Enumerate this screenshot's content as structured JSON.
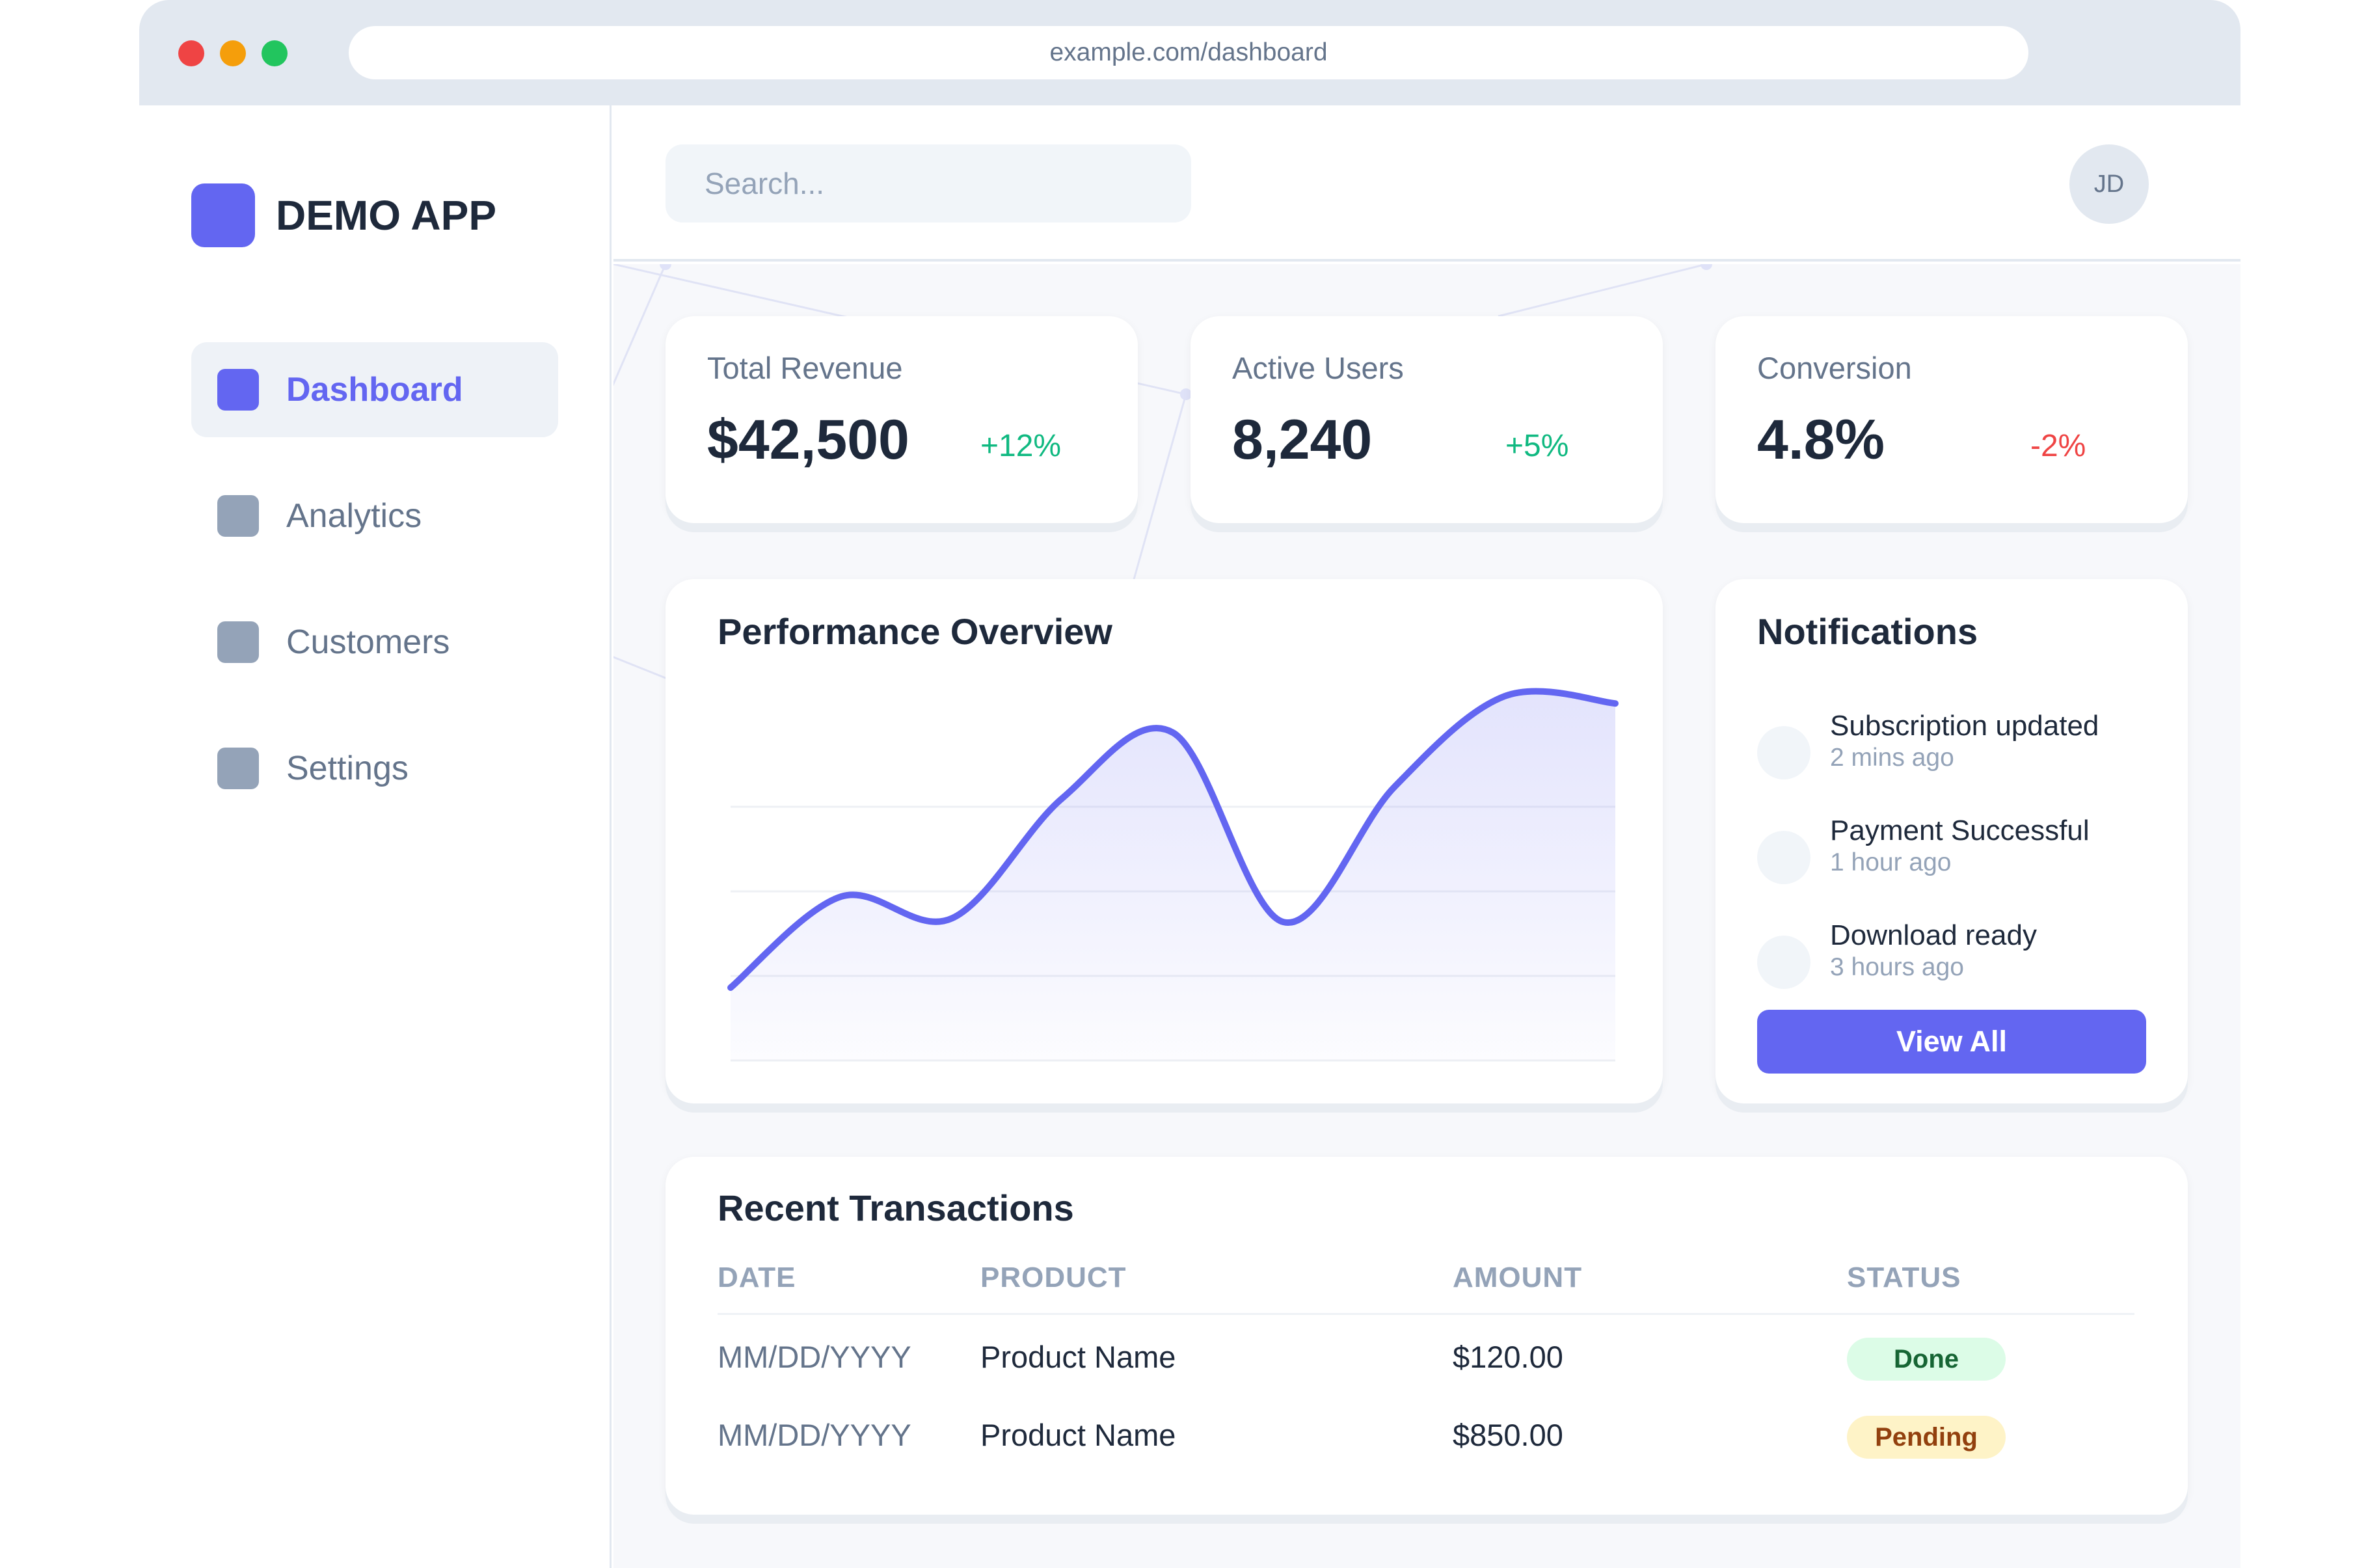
{
  "browser": {
    "url": "example.com/dashboard"
  },
  "sidebar": {
    "app_name": "DEMO APP",
    "items": [
      {
        "label": "Dashboard",
        "active": true
      },
      {
        "label": "Analytics",
        "active": false
      },
      {
        "label": "Customers",
        "active": false
      },
      {
        "label": "Settings",
        "active": false
      }
    ]
  },
  "header": {
    "search_placeholder": "Search...",
    "avatar_initials": "JD"
  },
  "stats": [
    {
      "label": "Total Revenue",
      "value": "$42,500",
      "change": "+12%",
      "trend": "up"
    },
    {
      "label": "Active Users",
      "value": "8,240",
      "change": "+5%",
      "trend": "up"
    },
    {
      "label": "Conversion",
      "value": "4.8%",
      "change": "-2%",
      "trend": "down"
    }
  ],
  "performance": {
    "title": "Performance Overview"
  },
  "chart_data": {
    "type": "area",
    "x": [
      0,
      1,
      2,
      3,
      4,
      5,
      6,
      7,
      8
    ],
    "series": [
      {
        "values": [
          20,
          45,
          39,
          72,
          90,
          38,
          75,
          100,
          98
        ]
      }
    ],
    "ylim": [
      0,
      100
    ],
    "grid": true,
    "line_color": "#6366f1"
  },
  "notifications": {
    "title": "Notifications",
    "items": [
      {
        "title": "Subscription updated",
        "time": "2 mins ago"
      },
      {
        "title": "Payment Successful",
        "time": "1 hour ago"
      },
      {
        "title": "Download ready",
        "time": "3 hours ago"
      }
    ],
    "button_label": "View All"
  },
  "transactions": {
    "title": "Recent Transactions",
    "columns": [
      "DATE",
      "PRODUCT",
      "AMOUNT",
      "STATUS"
    ],
    "rows": [
      {
        "date": "MM/DD/YYYY",
        "product": "Product Name",
        "amount": "$120.00",
        "status": "Done"
      },
      {
        "date": "MM/DD/YYYY",
        "product": "Product Name",
        "amount": "$850.00",
        "status": "Pending"
      }
    ]
  },
  "colors": {
    "accent": "#6366f1",
    "positive": "#10b981",
    "negative": "#ef4444",
    "done_bg": "#dcfce7",
    "pending_bg": "#fef3c7"
  }
}
